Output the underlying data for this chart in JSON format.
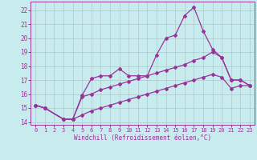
{
  "xlabel": "Windchill (Refroidissement éolien,°C)",
  "bg_color": "#c8ecee",
  "line_color": "#993399",
  "grid_color": "#b0c8cc",
  "xlim": [
    -0.5,
    23.5
  ],
  "ylim": [
    13.8,
    22.6
  ],
  "xticks": [
    0,
    1,
    2,
    3,
    4,
    5,
    6,
    7,
    8,
    9,
    10,
    11,
    12,
    13,
    14,
    15,
    16,
    17,
    18,
    19,
    20,
    21,
    22,
    23
  ],
  "yticks": [
    14,
    15,
    16,
    17,
    18,
    19,
    20,
    21,
    22
  ],
  "line1_x": [
    0,
    1,
    3,
    4,
    5,
    6,
    7,
    8,
    9,
    10,
    11,
    12,
    13,
    14,
    15,
    16,
    17,
    18,
    19,
    20,
    21,
    22,
    23
  ],
  "line1_y": [
    15.2,
    15.0,
    14.2,
    14.2,
    15.9,
    17.1,
    17.3,
    17.3,
    17.8,
    17.3,
    17.3,
    17.3,
    18.8,
    20.0,
    20.2,
    21.6,
    22.2,
    20.5,
    19.2,
    18.6,
    17.0,
    17.0,
    16.6
  ],
  "line2_x": [
    0,
    1,
    3,
    4,
    5,
    6,
    7,
    8,
    9,
    10,
    11,
    12,
    13,
    14,
    15,
    16,
    17,
    18,
    19,
    20,
    21,
    22,
    23
  ],
  "line2_y": [
    15.2,
    15.0,
    14.2,
    14.2,
    15.8,
    16.0,
    16.3,
    16.5,
    16.7,
    16.9,
    17.1,
    17.3,
    17.5,
    17.7,
    17.9,
    18.1,
    18.4,
    18.6,
    19.0,
    18.6,
    17.0,
    17.0,
    16.6
  ],
  "line3_x": [
    0,
    1,
    3,
    4,
    5,
    6,
    7,
    8,
    9,
    10,
    11,
    12,
    13,
    14,
    15,
    16,
    17,
    18,
    19,
    20,
    21,
    22,
    23
  ],
  "line3_y": [
    15.2,
    15.0,
    14.2,
    14.2,
    14.5,
    14.8,
    15.0,
    15.2,
    15.4,
    15.6,
    15.8,
    16.0,
    16.2,
    16.4,
    16.6,
    16.8,
    17.0,
    17.2,
    17.4,
    17.2,
    16.4,
    16.6,
    16.6
  ],
  "marker": "D",
  "marker_size": 2,
  "linewidth": 0.9,
  "tick_fontsize": 5,
  "xlabel_fontsize": 5.5
}
